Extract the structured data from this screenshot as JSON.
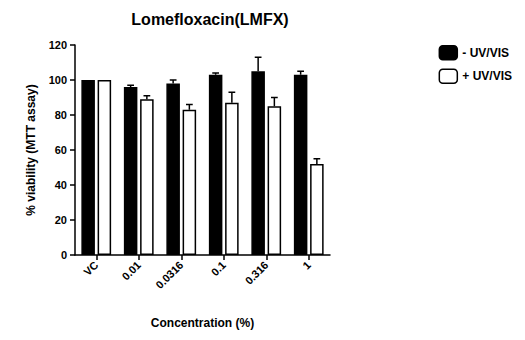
{
  "chart_data": {
    "type": "bar",
    "title": "Lomefloxacin(LMFX)",
    "x_label": "Concentration (%)",
    "y_label": "% viability (MTT assay)",
    "categories": [
      "VC",
      "0.01",
      "0.0316",
      "0.1",
      "0.316",
      "1"
    ],
    "series": [
      {
        "name": "- UV/VIS",
        "color": "#000000",
        "values": [
          100,
          96,
          98,
          103,
          105,
          103
        ],
        "error": [
          0,
          1,
          2,
          1,
          8,
          2
        ]
      },
      {
        "name": "+ UV/VIS",
        "color": "#ffffff",
        "values": [
          100,
          89,
          83,
          87,
          85,
          52
        ],
        "error": [
          0,
          2,
          3,
          6,
          5,
          3
        ]
      }
    ],
    "ylim": [
      0,
      120
    ],
    "yticks": [
      0,
      20,
      40,
      60,
      80,
      100,
      120
    ],
    "grid": false,
    "legend": "right"
  }
}
